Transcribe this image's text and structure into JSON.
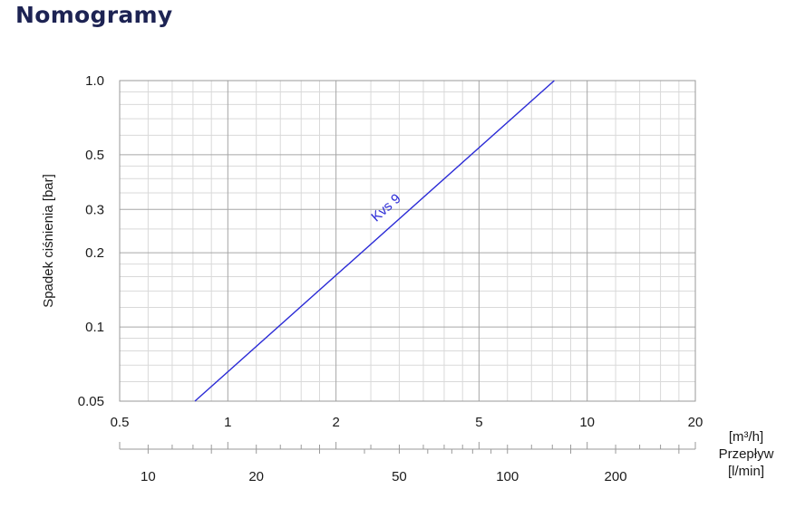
{
  "page": {
    "title": "Nomogramy"
  },
  "chart_data": {
    "type": "line",
    "title": "",
    "ylabel": "Spadek ciśnienia [bar]",
    "xlabel": "Przepływ",
    "y_scale": "log",
    "x_scale": "log",
    "ylim": [
      0.05,
      1.0
    ],
    "xlim": [
      0.5,
      20
    ],
    "x_unit_primary": "[m³/h]",
    "x_unit_secondary": "[l/min]",
    "y_ticks": [
      "0.05",
      "0.1",
      "0.2",
      "0.3",
      "0.5",
      "1.0"
    ],
    "x_ticks_m3h": [
      "0.5",
      "1",
      "2",
      "5",
      "10",
      "20"
    ],
    "x_ticks_lmin": [
      "10",
      "20",
      "50",
      "100",
      "200"
    ],
    "grid": true,
    "series": [
      {
        "name": "Kvs 9",
        "color": "#2b2bd6",
        "x": [
          0.81,
          8.1
        ],
        "y": [
          0.05,
          1.0
        ]
      }
    ]
  }
}
